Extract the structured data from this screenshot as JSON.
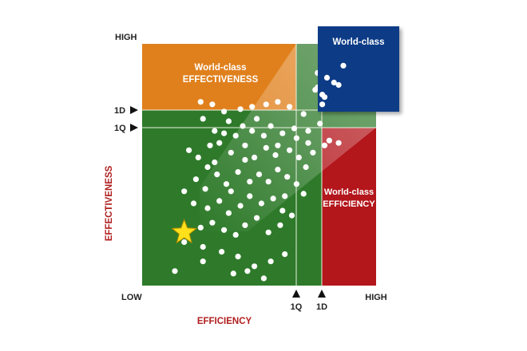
{
  "chart_data": {
    "type": "scatter",
    "title": "",
    "xlabel": "EFFICIENCY",
    "ylabel": "EFFECTIVENESS",
    "xlim": [
      0,
      100
    ],
    "ylim": [
      0,
      100
    ],
    "x_ticks": {
      "low": "LOW",
      "high": "HIGH",
      "q1": "1Q",
      "d1": "1D"
    },
    "y_ticks": {
      "low": "LOW",
      "high": "HIGH",
      "q1": "1Q",
      "d1": "1D"
    },
    "thresholds": {
      "x_1Q": 66.5,
      "x_1D": 76.5,
      "y_1Q": 67.5,
      "y_1D": 73.5
    },
    "zones": {
      "effectiveness": {
        "line1": "World-class",
        "line2": "EFFECTIVENESS",
        "color": "#e0801c"
      },
      "efficiency": {
        "line1": "World-class",
        "line2": "EFFICIENCY",
        "color": "#b3161b"
      },
      "world_class": {
        "label": "World-class",
        "color": "#0d3a86"
      },
      "base": {
        "color": "#2e7a2a"
      }
    },
    "highlight": {
      "marker": "star-icon",
      "x": 18,
      "y": 22,
      "color": "#ffe01a"
    },
    "points": [
      [
        75,
        82
      ],
      [
        77,
        79
      ],
      [
        84,
        83
      ],
      [
        75,
        88
      ],
      [
        77,
        75
      ],
      [
        78,
        78
      ],
      [
        74,
        81
      ],
      [
        86,
        91
      ],
      [
        79,
        86
      ],
      [
        82,
        84
      ],
      [
        25,
        76
      ],
      [
        30,
        75
      ],
      [
        35,
        72
      ],
      [
        42,
        73
      ],
      [
        47,
        74
      ],
      [
        53,
        75
      ],
      [
        58,
        76
      ],
      [
        63,
        74
      ],
      [
        69,
        71
      ],
      [
        76,
        67
      ],
      [
        80,
        60
      ],
      [
        84,
        59
      ],
      [
        78,
        58
      ],
      [
        73,
        55
      ],
      [
        26,
        69
      ],
      [
        31,
        64
      ],
      [
        37,
        68
      ],
      [
        43,
        66
      ],
      [
        49,
        69
      ],
      [
        55,
        66
      ],
      [
        60,
        63
      ],
      [
        66,
        61
      ],
      [
        71,
        59
      ],
      [
        20,
        56
      ],
      [
        24,
        53
      ],
      [
        28,
        49
      ],
      [
        33,
        59
      ],
      [
        38,
        55
      ],
      [
        44,
        58
      ],
      [
        48,
        53
      ],
      [
        53,
        57
      ],
      [
        57,
        54
      ],
      [
        63,
        56
      ],
      [
        67,
        53
      ],
      [
        70,
        49
      ],
      [
        23,
        44
      ],
      [
        27,
        40
      ],
      [
        32,
        46
      ],
      [
        36,
        42
      ],
      [
        41,
        47
      ],
      [
        46,
        43
      ],
      [
        50,
        46
      ],
      [
        54,
        43
      ],
      [
        58,
        48
      ],
      [
        62,
        45
      ],
      [
        66,
        42
      ],
      [
        69,
        38
      ],
      [
        18,
        39
      ],
      [
        22,
        34
      ],
      [
        28,
        32
      ],
      [
        33,
        35
      ],
      [
        37,
        30
      ],
      [
        42,
        33
      ],
      [
        46,
        37
      ],
      [
        51,
        34
      ],
      [
        56,
        36
      ],
      [
        60,
        31
      ],
      [
        64,
        29
      ],
      [
        25,
        24
      ],
      [
        30,
        26
      ],
      [
        35,
        23
      ],
      [
        40,
        21
      ],
      [
        44,
        25
      ],
      [
        49,
        28
      ],
      [
        54,
        22
      ],
      [
        59,
        25
      ],
      [
        18,
        18
      ],
      [
        26,
        16
      ],
      [
        34,
        14
      ],
      [
        41,
        12
      ],
      [
        48,
        8
      ],
      [
        55,
        10
      ],
      [
        61,
        13
      ],
      [
        14,
        6
      ],
      [
        26,
        10
      ],
      [
        39,
        5
      ],
      [
        45,
        6
      ],
      [
        52,
        3
      ],
      [
        29,
        58
      ],
      [
        40,
        62
      ],
      [
        44,
        52
      ],
      [
        52,
        62
      ],
      [
        58,
        58
      ],
      [
        47,
        64
      ],
      [
        35,
        63
      ],
      [
        65,
        65
      ],
      [
        71,
        64
      ],
      [
        38,
        39
      ],
      [
        31,
        51
      ],
      [
        61,
        37
      ]
    ]
  }
}
